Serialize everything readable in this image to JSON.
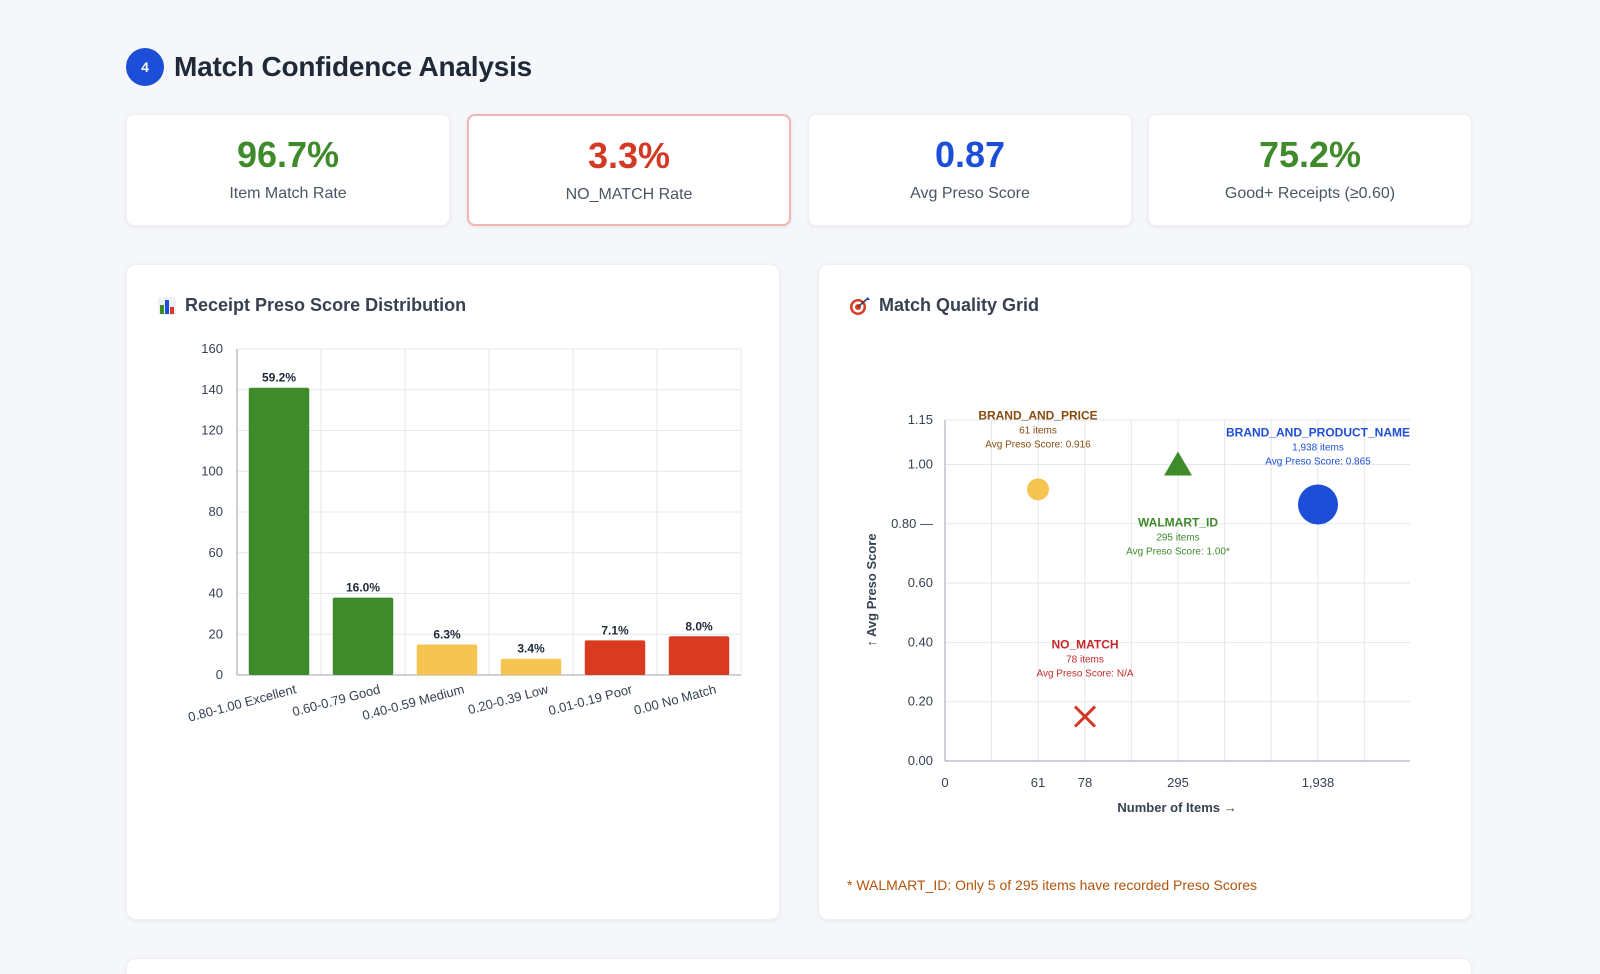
{
  "section": {
    "number": "4",
    "title": "Match Confidence Analysis"
  },
  "stats": [
    {
      "value": "96.7%",
      "label": "Item Match Rate",
      "color": "#3f8a2a"
    },
    {
      "value": "3.3%",
      "label": "NO_MATCH Rate",
      "color": "#d23a25"
    },
    {
      "value": "0.87",
      "label": "Avg Preso Score",
      "color": "#1d4ed8"
    },
    {
      "value": "75.2%",
      "label": "Good+ Receipts (≥0.60)",
      "color": "#3f8a2a"
    }
  ],
  "bar_panel": {
    "title": "Receipt Preso Score Distribution",
    "icon": "bar-chart-icon"
  },
  "grid_panel": {
    "title": "Match Quality Grid",
    "icon": "target-icon",
    "footnote": "* WALMART_ID: Only 5 of 295 items have recorded Preso Scores"
  },
  "chart_data": [
    {
      "type": "bar",
      "categories": [
        "0.80-1.00 Excellent",
        "0.60-0.79 Good",
        "0.40-0.59 Medium",
        "0.20-0.39 Low",
        "0.01-0.19 Poor",
        "0.00 No Match"
      ],
      "values": [
        141,
        38,
        15,
        8,
        17,
        19
      ],
      "data_labels": [
        "59.2%",
        "16.0%",
        "6.3%",
        "3.4%",
        "7.1%",
        "8.0%"
      ],
      "colors": [
        "#3f8a2a",
        "#3f8a2a",
        "#f5c451",
        "#f5c451",
        "#d93a22",
        "#d93a22"
      ],
      "ylim": [
        0,
        160
      ],
      "yticks": [
        "0",
        "20",
        "40",
        "60",
        "80",
        "100",
        "120",
        "140",
        "160"
      ],
      "grid": true
    },
    {
      "type": "scatter",
      "xlabel": "Number of Items →",
      "ylabel": "↑ Avg Preso Score",
      "ylim": [
        0,
        1.15
      ],
      "yticks": [
        {
          "value": 0,
          "label": "0.00"
        },
        {
          "value": 0.2,
          "label": "0.20"
        },
        {
          "value": 0.4,
          "label": "0.40"
        },
        {
          "value": 0.6,
          "label": "0.60"
        },
        {
          "value": 0.8,
          "label": "0.80 —"
        },
        {
          "value": 1.0,
          "label": "1.00"
        },
        {
          "value": 1.15,
          "label": "1.15"
        }
      ],
      "xticks": [
        "0",
        "61",
        "78",
        "295",
        "1,938"
      ],
      "grid": true,
      "points": [
        {
          "name": "BRAND_AND_PRICE",
          "items_label": "61 items",
          "score_label": "Avg Preso Score: 0.916",
          "x": 61,
          "y": 0.916,
          "marker": "circle",
          "color": "#f5c451",
          "label_color": "#8a4b0e"
        },
        {
          "name": "NO_MATCH",
          "items_label": "78 items",
          "score_label": "Avg Preso Score: N/A",
          "x": 78,
          "y": 0.15,
          "marker": "x",
          "color": "#d23a25",
          "label_color": "#c62828"
        },
        {
          "name": "WALMART_ID",
          "items_label": "295 items",
          "score_label": "Avg Preso Score: 1.00*",
          "x": 295,
          "y": 1.0,
          "marker": "triangle",
          "color": "#3f8a2a",
          "label_color": "#3f8a2a"
        },
        {
          "name": "BRAND_AND_PRODUCT_NAME",
          "items_label": "1,938 items",
          "score_label": "Avg Preso Score: 0.865",
          "x": 1938,
          "y": 0.865,
          "marker": "circle-large",
          "color": "#1d4ed8",
          "label_color": "#1d4ed8"
        }
      ]
    }
  ]
}
